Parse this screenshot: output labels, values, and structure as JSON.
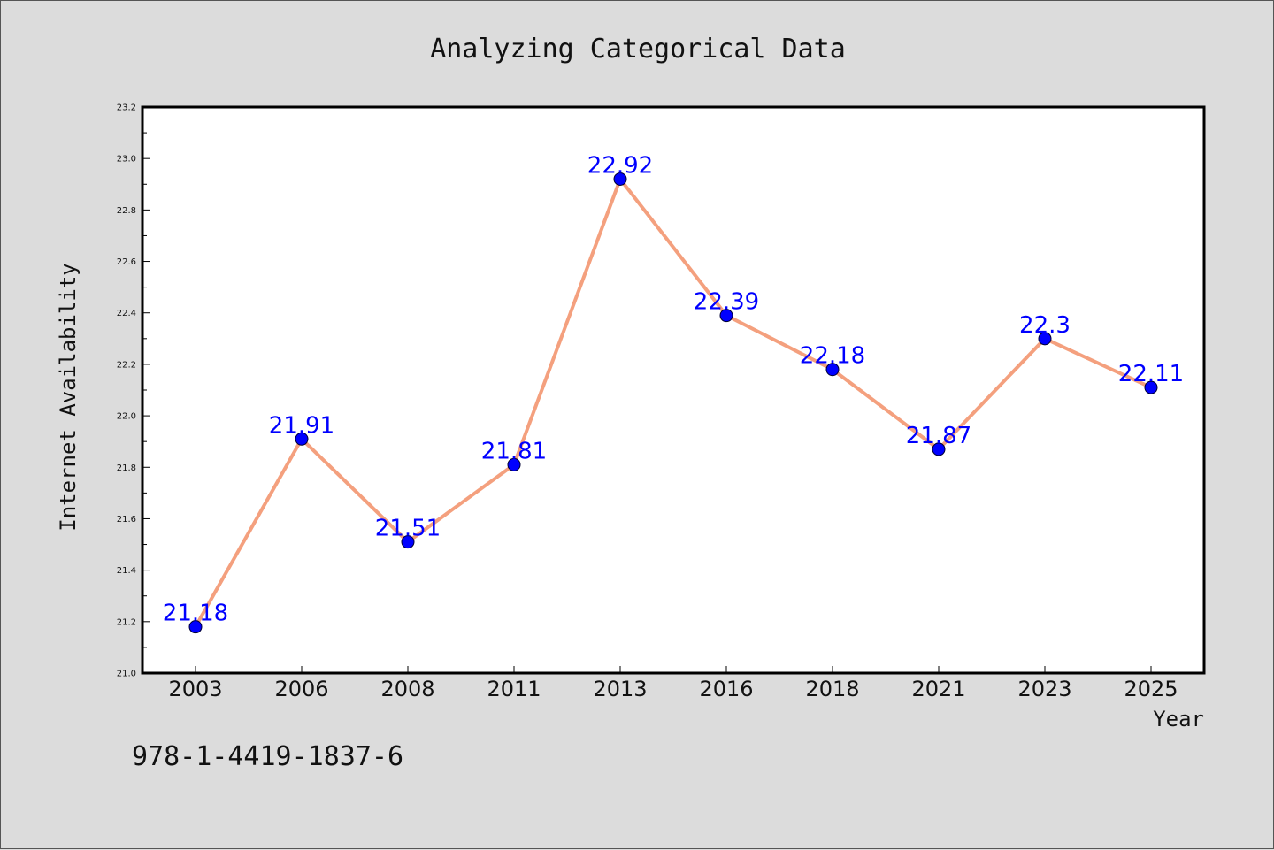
{
  "chart_data": {
    "type": "line",
    "title": "Analyzing Categorical Data",
    "xlabel": "Year",
    "ylabel": "Internet Availability",
    "categories": [
      "2003",
      "2006",
      "2008",
      "2011",
      "2013",
      "2016",
      "2018",
      "2021",
      "2023",
      "2025"
    ],
    "values": [
      21.18,
      21.91,
      21.51,
      21.81,
      22.92,
      22.39,
      22.18,
      21.87,
      22.3,
      22.11
    ],
    "data_labels": [
      "21.18",
      "21.91",
      "21.51",
      "21.81",
      "22.92",
      "22.39",
      "22.18",
      "21.87",
      "22.3",
      "22.11"
    ],
    "ylim": [
      21.0,
      23.2
    ],
    "yticks": [
      "21.0",
      "21.2",
      "21.4",
      "21.6",
      "21.8",
      "22.0",
      "22.2",
      "22.4",
      "22.6",
      "22.8",
      "23.0",
      "23.2"
    ],
    "grid": false,
    "legend": false,
    "colors": {
      "line": "#f4a07e",
      "marker": "#0000ff",
      "label": "#0000ff",
      "background": "#dcdcdc",
      "plot_background": "#ffffff"
    }
  },
  "footer": {
    "code": "978-1-4419-1837-6"
  }
}
